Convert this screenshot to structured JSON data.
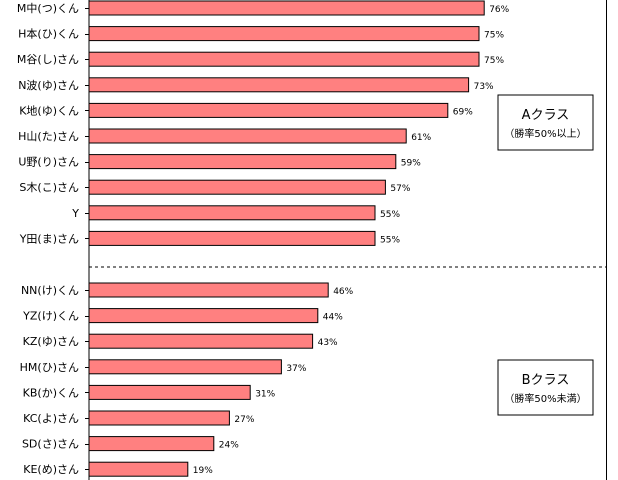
{
  "chart_data": {
    "type": "bar",
    "orientation": "horizontal",
    "unit": "%",
    "xlim": [
      0,
      100
    ],
    "grid": false,
    "bar_color": "#FF8080",
    "bar_edge_color": "#000000",
    "groups": [
      {
        "title": "Aクラス",
        "subtitle": "（勝率50%以上）",
        "categories": [
          "M中(つ)くん",
          "H本(ひ)くん",
          "M谷(し)さん",
          "N波(ゆ)さん",
          "K地(ゆ)くん",
          "H山(た)さん",
          "U野(り)さん",
          "S木(こ)さん",
          "Y",
          "Y田(ま)さん"
        ],
        "values": [
          76,
          75,
          75,
          73,
          69,
          61,
          59,
          57,
          55,
          55
        ],
        "value_labels": [
          "76%",
          "75%",
          "75%",
          "73%",
          "69%",
          "61%",
          "59%",
          "57%",
          "55%",
          "55%"
        ]
      },
      {
        "title": "Bクラス",
        "subtitle": "（勝率50%未満）",
        "categories": [
          "NN(け)くん",
          "YZ(け)くん",
          "KZ(ゆ)さん",
          "HM(ひ)さん",
          "KB(か)くん",
          "KC(よ)さん",
          "SD(さ)さん",
          "KE(め)さん"
        ],
        "values": [
          46,
          44,
          43,
          37,
          31,
          27,
          24,
          19
        ],
        "value_labels": [
          "46%",
          "44%",
          "43%",
          "37%",
          "31%",
          "27%",
          "24%",
          "19%"
        ]
      }
    ]
  }
}
